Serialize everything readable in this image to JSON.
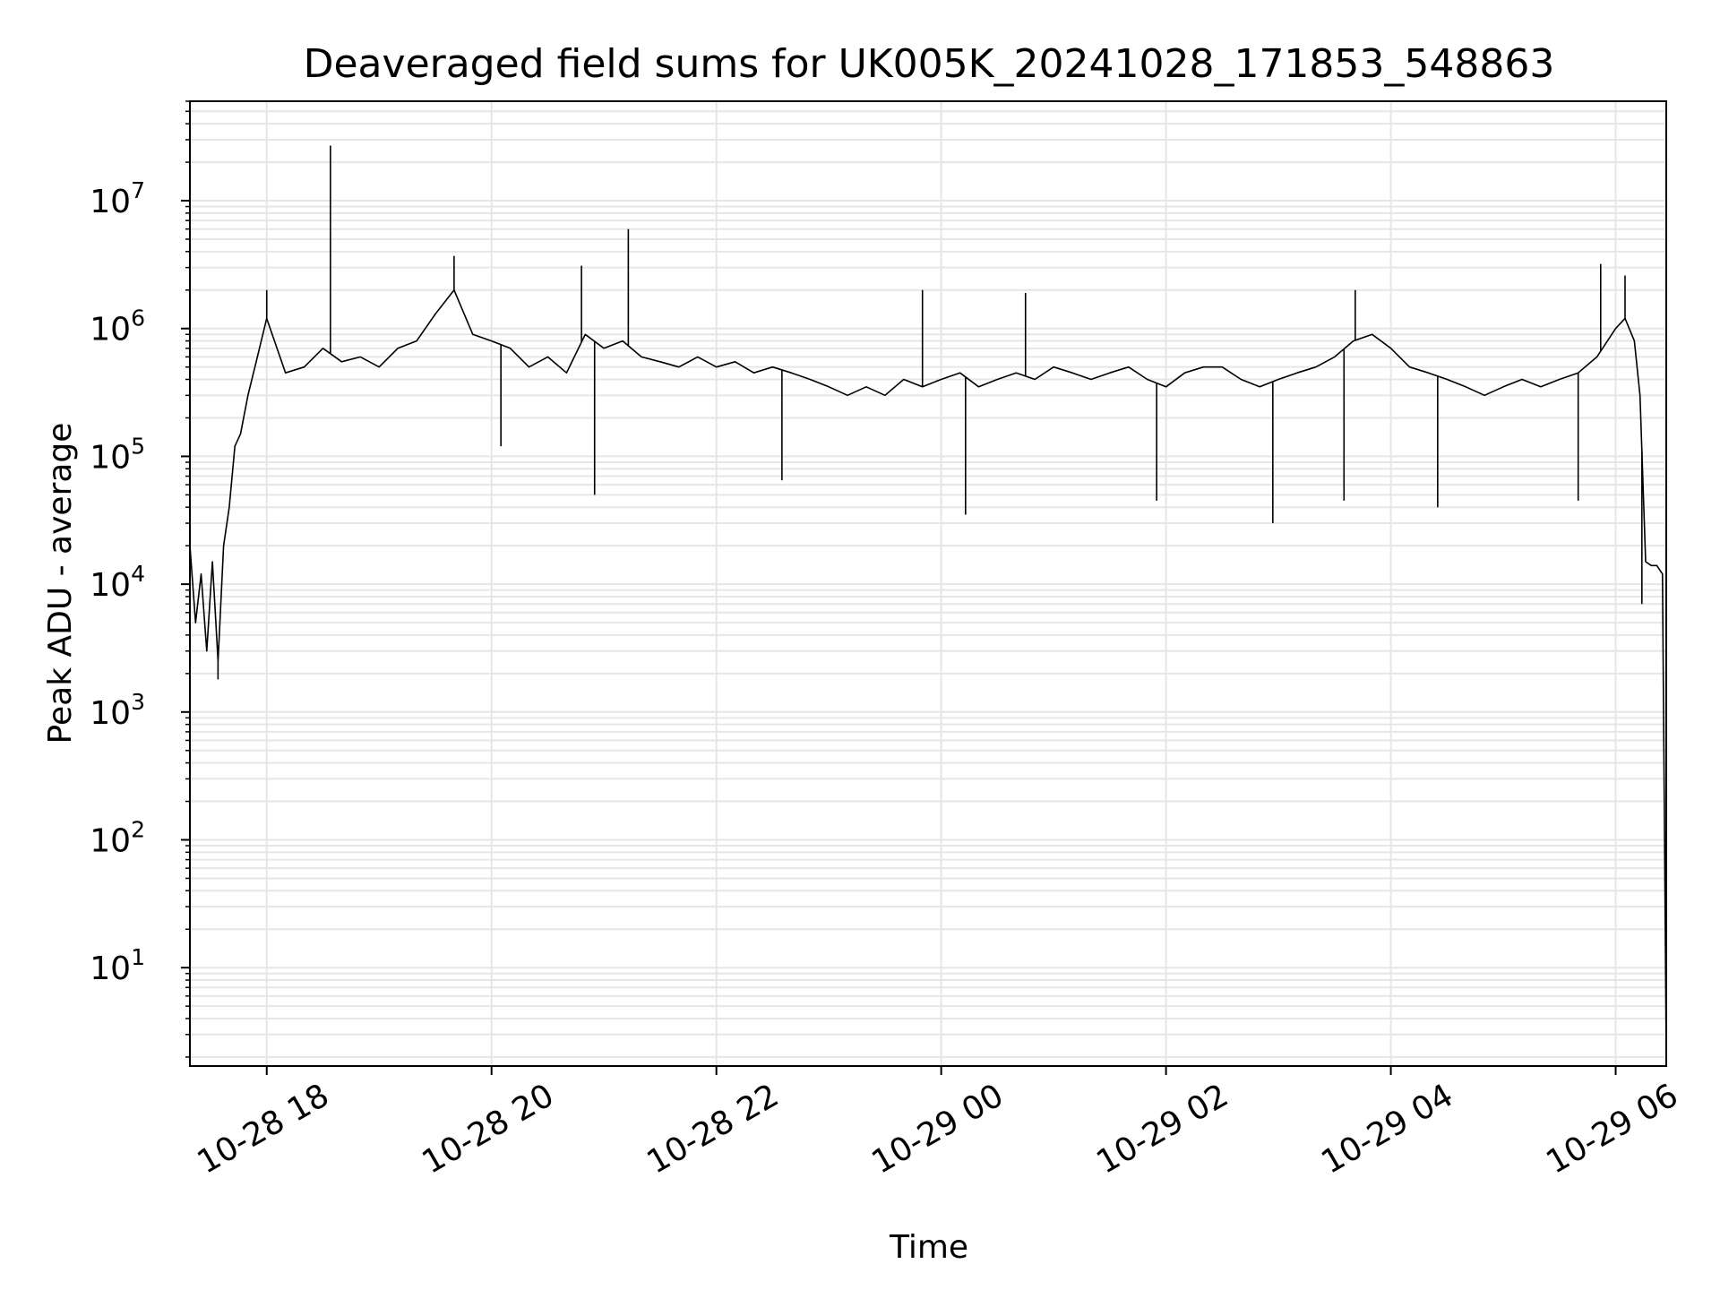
{
  "chart_data": {
    "type": "line",
    "title": "Deaveraged field sums for UK005K_20241028_171853_548863",
    "xlabel": "Time",
    "ylabel": "Peak ADU - average",
    "x_type": "time",
    "x_start": "2024-10-28 17:19",
    "x_end": "2024-10-29 06:27",
    "xlim": [
      "2024-10-28 17:19",
      "2024-10-29 06:27"
    ],
    "x_ticks": [
      {
        "t": "2024-10-28 18:00",
        "label": "10-28 18"
      },
      {
        "t": "2024-10-28 20:00",
        "label": "10-28 20"
      },
      {
        "t": "2024-10-28 22:00",
        "label": "10-28 22"
      },
      {
        "t": "2024-10-29 00:00",
        "label": "10-29 00"
      },
      {
        "t": "2024-10-29 02:00",
        "label": "10-29 02"
      },
      {
        "t": "2024-10-29 04:00",
        "label": "10-29 04"
      },
      {
        "t": "2024-10-29 06:00",
        "label": "10-29 06"
      }
    ],
    "y_scale": "log",
    "ylim": [
      1.7,
      60000000
    ],
    "y_ticks": [
      {
        "base": "10",
        "exp": "1",
        "value": 10
      },
      {
        "base": "10",
        "exp": "2",
        "value": 100
      },
      {
        "base": "10",
        "exp": "3",
        "value": 1000
      },
      {
        "base": "10",
        "exp": "4",
        "value": 10000
      },
      {
        "base": "10",
        "exp": "5",
        "value": 100000
      },
      {
        "base": "10",
        "exp": "6",
        "value": 1000000
      },
      {
        "base": "10",
        "exp": "7",
        "value": 10000000
      }
    ],
    "grid": true,
    "line_color": "#000000",
    "grid_color": "#e6e6e6",
    "series": [
      {
        "x": [
          "2024-10-28 17:19",
          "2024-10-28 17:22",
          "2024-10-28 17:25",
          "2024-10-28 17:28",
          "2024-10-28 17:31",
          "2024-10-28 17:34",
          "2024-10-28 17:37",
          "2024-10-28 17:40",
          "2024-10-28 17:43",
          "2024-10-28 17:46",
          "2024-10-28 17:50",
          "2024-10-28 17:55",
          "2024-10-28 18:00",
          "2024-10-28 18:10",
          "2024-10-28 18:20",
          "2024-10-28 18:30",
          "2024-10-28 18:40",
          "2024-10-28 18:50",
          "2024-10-28 19:00",
          "2024-10-28 19:10",
          "2024-10-28 19:20",
          "2024-10-28 19:30",
          "2024-10-28 19:40",
          "2024-10-28 19:50",
          "2024-10-28 20:00",
          "2024-10-28 20:10",
          "2024-10-28 20:20",
          "2024-10-28 20:30",
          "2024-10-28 20:40",
          "2024-10-28 20:50",
          "2024-10-28 21:00",
          "2024-10-28 21:10",
          "2024-10-28 21:20",
          "2024-10-28 21:30",
          "2024-10-28 21:40",
          "2024-10-28 21:50",
          "2024-10-28 22:00",
          "2024-10-28 22:10",
          "2024-10-28 22:20",
          "2024-10-28 22:30",
          "2024-10-28 22:40",
          "2024-10-28 22:50",
          "2024-10-28 23:00",
          "2024-10-28 23:10",
          "2024-10-28 23:20",
          "2024-10-28 23:30",
          "2024-10-28 23:40",
          "2024-10-28 23:50",
          "2024-10-29 00:00",
          "2024-10-29 00:10",
          "2024-10-29 00:20",
          "2024-10-29 00:30",
          "2024-10-29 00:40",
          "2024-10-29 00:50",
          "2024-10-29 01:00",
          "2024-10-29 01:10",
          "2024-10-29 01:20",
          "2024-10-29 01:30",
          "2024-10-29 01:40",
          "2024-10-29 01:50",
          "2024-10-29 02:00",
          "2024-10-29 02:10",
          "2024-10-29 02:20",
          "2024-10-29 02:30",
          "2024-10-29 02:40",
          "2024-10-29 02:50",
          "2024-10-29 03:00",
          "2024-10-29 03:10",
          "2024-10-29 03:20",
          "2024-10-29 03:30",
          "2024-10-29 03:40",
          "2024-10-29 03:50",
          "2024-10-29 04:00",
          "2024-10-29 04:10",
          "2024-10-29 04:20",
          "2024-10-29 04:30",
          "2024-10-29 04:40",
          "2024-10-29 04:50",
          "2024-10-29 05:00",
          "2024-10-29 05:10",
          "2024-10-29 05:20",
          "2024-10-29 05:30",
          "2024-10-29 05:40",
          "2024-10-29 05:50",
          "2024-10-29 06:00",
          "2024-10-29 06:05",
          "2024-10-29 06:10",
          "2024-10-29 06:13",
          "2024-10-29 06:16",
          "2024-10-29 06:19",
          "2024-10-29 06:22",
          "2024-10-29 06:25",
          "2024-10-29 06:27"
        ],
        "values": [
          20000,
          5000,
          12000,
          3000,
          15000,
          2500,
          20000,
          40000,
          120000,
          150000,
          300000,
          600000,
          1200000,
          450000,
          500000,
          700000,
          550000,
          600000,
          500000,
          700000,
          800000,
          1300000,
          2000000,
          900000,
          800000,
          700000,
          500000,
          600000,
          450000,
          900000,
          700000,
          800000,
          600000,
          550000,
          500000,
          600000,
          500000,
          550000,
          450000,
          500000,
          450000,
          400000,
          350000,
          300000,
          350000,
          300000,
          400000,
          350000,
          400000,
          450000,
          350000,
          400000,
          450000,
          400000,
          500000,
          450000,
          400000,
          450000,
          500000,
          400000,
          350000,
          450000,
          500000,
          500000,
          400000,
          350000,
          400000,
          450000,
          500000,
          600000,
          800000,
          900000,
          700000,
          500000,
          450000,
          400000,
          350000,
          300000,
          350000,
          400000,
          350000,
          400000,
          450000,
          600000,
          1000000,
          1200000,
          800000,
          300000,
          15000,
          14000,
          14000,
          12000,
          2
        ]
      },
      {
        "spikes": [
          {
            "t": "2024-10-28 17:19",
            "value": 60000
          },
          {
            "t": "2024-10-28 17:34",
            "value": 1800
          },
          {
            "t": "2024-10-28 18:00",
            "value": 2000000
          },
          {
            "t": "2024-10-28 18:34",
            "value": 27000000
          },
          {
            "t": "2024-10-28 19:40",
            "value": 3700000
          },
          {
            "t": "2024-10-28 20:05",
            "value": 120000
          },
          {
            "t": "2024-10-28 20:48",
            "value": 3100000
          },
          {
            "t": "2024-10-28 20:55",
            "value": 50000
          },
          {
            "t": "2024-10-28 21:13",
            "value": 6000000
          },
          {
            "t": "2024-10-28 22:35",
            "value": 65000
          },
          {
            "t": "2024-10-28 23:50",
            "value": 2000000
          },
          {
            "t": "2024-10-29 00:13",
            "value": 35000
          },
          {
            "t": "2024-10-29 00:45",
            "value": 1900000
          },
          {
            "t": "2024-10-29 01:55",
            "value": 45000
          },
          {
            "t": "2024-10-29 02:57",
            "value": 30000
          },
          {
            "t": "2024-10-29 03:35",
            "value": 45000
          },
          {
            "t": "2024-10-29 03:41",
            "value": 2000000
          },
          {
            "t": "2024-10-29 04:25",
            "value": 40000
          },
          {
            "t": "2024-10-29 05:40",
            "value": 45000
          },
          {
            "t": "2024-10-29 05:52",
            "value": 3200000
          },
          {
            "t": "2024-10-29 06:05",
            "value": 2600000
          },
          {
            "t": "2024-10-29 06:14",
            "value": 7000
          }
        ]
      }
    ]
  }
}
